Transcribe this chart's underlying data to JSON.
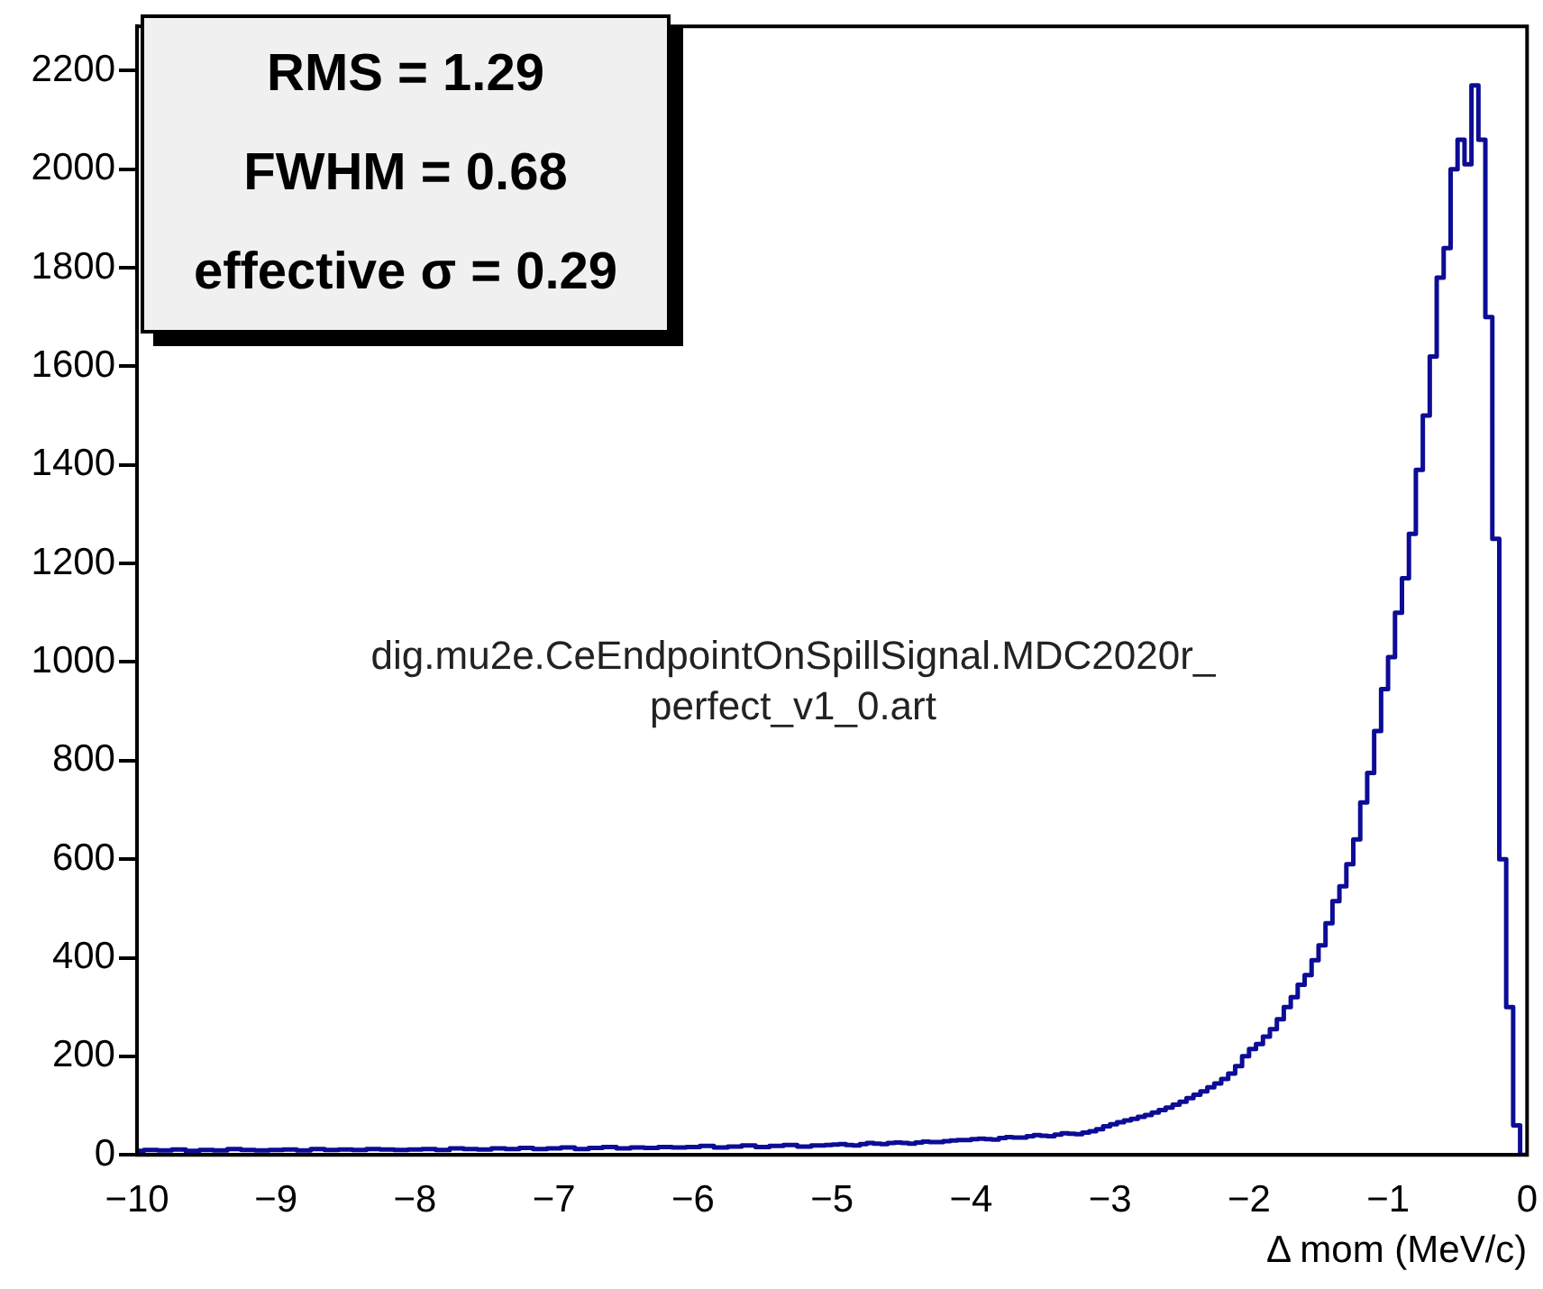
{
  "chart_data": {
    "type": "histogram",
    "xlabel": "Δ mom (MeV/c)",
    "annotations": [
      "RMS = 1.29",
      "FWHM = 0.68",
      "effective  σ = 0.29",
      "dig.mu2e.CeEndpointOnSpillSignal.MDC2020r_\nperfect_v1_0.art"
    ],
    "color": "#0c0c96",
    "bins": [
      -10,
      -9.95,
      -9.9,
      -9.85,
      -9.8,
      -9.75,
      -9.7,
      -9.65,
      -9.6,
      -9.55,
      -9.5,
      -9.45,
      -9.4,
      -9.35,
      -9.3,
      -9.25,
      -9.2,
      -9.15,
      -9.1,
      -9.05,
      -9,
      -8.95,
      -8.9,
      -8.85,
      -8.8,
      -8.75,
      -8.7,
      -8.65,
      -8.6,
      -8.55,
      -8.5,
      -8.45,
      -8.4,
      -8.35,
      -8.3,
      -8.25,
      -8.2,
      -8.15,
      -8.1,
      -8.05,
      -8,
      -7.95,
      -7.9,
      -7.85,
      -7.8,
      -7.75,
      -7.7,
      -7.65,
      -7.6,
      -7.55,
      -7.5,
      -7.45,
      -7.4,
      -7.35,
      -7.3,
      -7.25,
      -7.2,
      -7.15,
      -7.1,
      -7.05,
      -7,
      -6.95,
      -6.9,
      -6.85,
      -6.8,
      -6.75,
      -6.7,
      -6.65,
      -6.6,
      -6.55,
      -6.5,
      -6.45,
      -6.4,
      -6.35,
      -6.3,
      -6.25,
      -6.2,
      -6.15,
      -6.1,
      -6.05,
      -6,
      -5.95,
      -5.9,
      -5.85,
      -5.8,
      -5.75,
      -5.7,
      -5.65,
      -5.6,
      -5.55,
      -5.5,
      -5.45,
      -5.4,
      -5.35,
      -5.3,
      -5.25,
      -5.2,
      -5.15,
      -5.1,
      -5.05,
      -5,
      -4.95,
      -4.9,
      -4.85,
      -4.8,
      -4.75,
      -4.7,
      -4.65,
      -4.6,
      -4.55,
      -4.5,
      -4.45,
      -4.4,
      -4.35,
      -4.3,
      -4.25,
      -4.2,
      -4.15,
      -4.1,
      -4.05,
      -4,
      -3.95,
      -3.9,
      -3.85,
      -3.8,
      -3.75,
      -3.7,
      -3.65,
      -3.6,
      -3.55,
      -3.5,
      -3.45,
      -3.4,
      -3.35,
      -3.3,
      -3.25,
      -3.2,
      -3.15,
      -3.1,
      -3.05,
      -3,
      -2.95,
      -2.9,
      -2.85,
      -2.8,
      -2.75,
      -2.7,
      -2.65,
      -2.6,
      -2.55,
      -2.5,
      -2.45,
      -2.4,
      -2.35,
      -2.3,
      -2.25,
      -2.2,
      -2.15,
      -2.1,
      -2.05,
      -2,
      -1.95,
      -1.9,
      -1.85,
      -1.8,
      -1.75,
      -1.7,
      -1.65,
      -1.6,
      -1.55,
      -1.5,
      -1.45,
      -1.4,
      -1.35,
      -1.3,
      -1.25,
      -1.2,
      -1.15,
      -1.1,
      -1.05,
      -1,
      -0.95,
      -0.9,
      -0.85,
      -0.8,
      -0.75,
      -0.7,
      -0.65,
      -0.6,
      -0.55,
      -0.5,
      -0.45,
      -0.4,
      -0.35,
      -0.3,
      -0.25,
      -0.2,
      -0.15,
      -0.1,
      -0.05,
      0
    ],
    "values": [
      8,
      8,
      10,
      10,
      9,
      9,
      11,
      11,
      8,
      8,
      10,
      10,
      9,
      9,
      12,
      12,
      10,
      10,
      9,
      9,
      10,
      10,
      11,
      11,
      9,
      9,
      12,
      12,
      10,
      10,
      11,
      11,
      10,
      10,
      12,
      12,
      11,
      11,
      10,
      10,
      11,
      11,
      12,
      12,
      10,
      10,
      13,
      13,
      12,
      12,
      11,
      11,
      13,
      13,
      12,
      12,
      14,
      14,
      12,
      12,
      13,
      13,
      15,
      15,
      12,
      12,
      14,
      14,
      16,
      16,
      13,
      13,
      15,
      15,
      14,
      14,
      16,
      16,
      15,
      15,
      16,
      16,
      18,
      18,
      15,
      15,
      17,
      17,
      19,
      19,
      16,
      16,
      18,
      18,
      20,
      20,
      17,
      17,
      19,
      19,
      20,
      21,
      22,
      20,
      19,
      22,
      24,
      23,
      22,
      24,
      25,
      24,
      23,
      25,
      27,
      26,
      26,
      28,
      29,
      30,
      30,
      32,
      33,
      32,
      31,
      34,
      36,
      35,
      35,
      38,
      40,
      39,
      38,
      41,
      44,
      43,
      42,
      45,
      48,
      52,
      58,
      62,
      66,
      70,
      73,
      77,
      81,
      86,
      91,
      96,
      102,
      108,
      115,
      122,
      129,
      137,
      145,
      154,
      165,
      180,
      200,
      215,
      225,
      240,
      255,
      275,
      300,
      320,
      345,
      365,
      395,
      425,
      470,
      515,
      545,
      590,
      640,
      715,
      775,
      860,
      945,
      1010,
      1100,
      1170,
      1260,
      1390,
      1500,
      1620,
      1780,
      1840,
      2000,
      2060,
      2010,
      2170,
      2060,
      1700,
      1250,
      600,
      300,
      60
    ],
    "xlim": [
      -10,
      0
    ],
    "xticks": [
      -10,
      -9,
      -8,
      -7,
      -6,
      -5,
      -4,
      -3,
      -2,
      -1,
      0
    ],
    "ylim": [
      0,
      2290
    ],
    "yticks": [
      0,
      200,
      400,
      600,
      800,
      1000,
      1200,
      1400,
      1600,
      1800,
      2000,
      2200
    ],
    "grid": false,
    "legend": false
  }
}
